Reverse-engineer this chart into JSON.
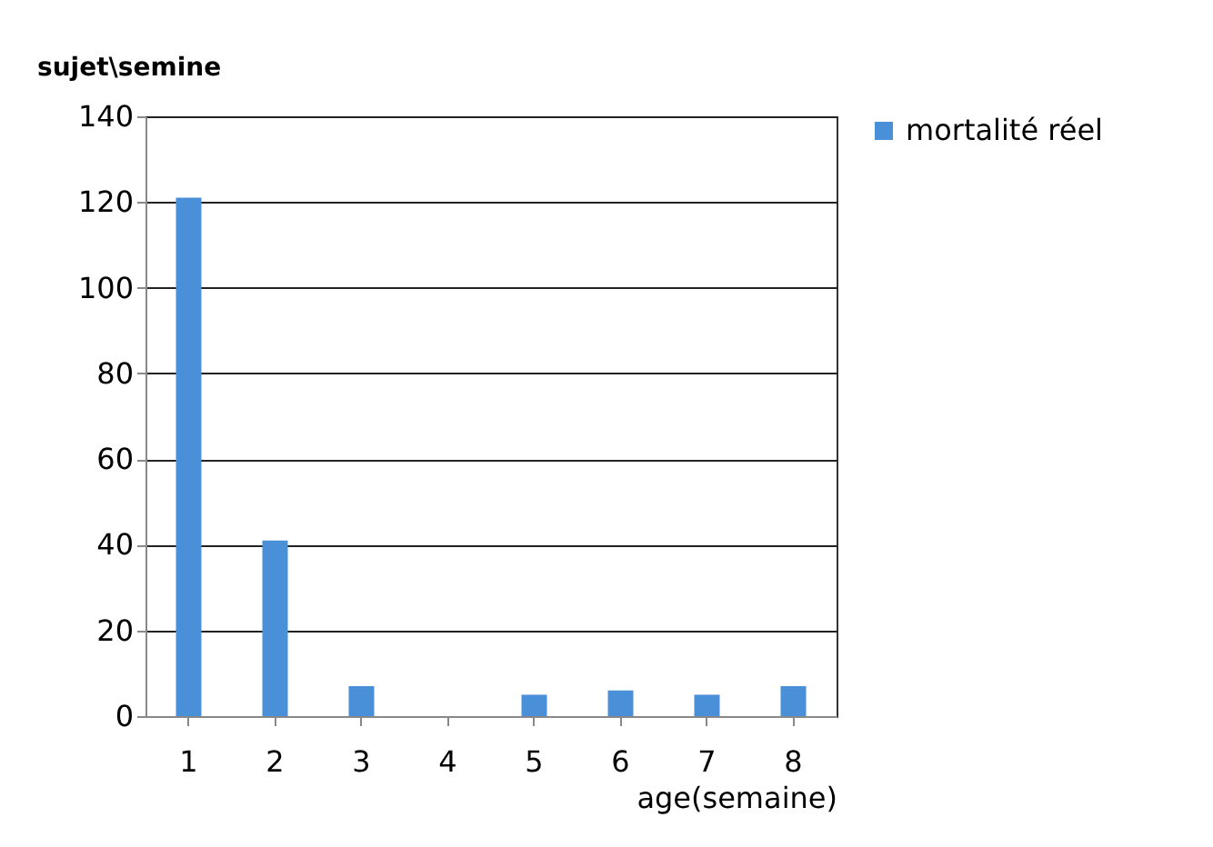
{
  "chart_data": {
    "type": "bar",
    "xlabel": "age(semaine)",
    "ylabel": "sujet\\semine",
    "categories": [
      "1",
      "2",
      "3",
      "4",
      "5",
      "6",
      "7",
      "8"
    ],
    "series": [
      {
        "name": "mortalité réel",
        "color": "#4a90d9",
        "values": [
          121,
          41,
          7,
          0,
          5,
          6,
          5,
          7
        ]
      }
    ],
    "ylim": [
      0,
      140
    ],
    "yticks": [
      0,
      20,
      40,
      60,
      80,
      100,
      120,
      140
    ],
    "grid": "y",
    "legend": "right"
  }
}
